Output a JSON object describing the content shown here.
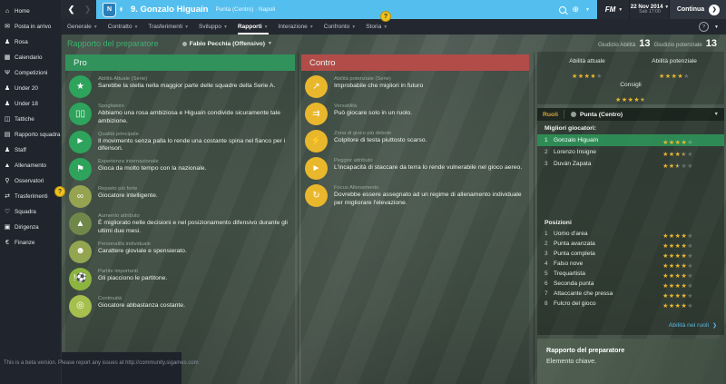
{
  "colors": {
    "blue_bar": "#54bfee",
    "pro_header": "#31935b",
    "contro_header": "#b24c49",
    "star_gold": "#eab62e",
    "highlight_row": "#2f9158",
    "link_blue": "#5bb9e6"
  },
  "sidebar": {
    "items": [
      {
        "label": "Home",
        "icon": "home-icon",
        "glyph": "⌂"
      },
      {
        "label": "Posta in arrivo",
        "icon": "inbox-icon",
        "glyph": "✉"
      },
      {
        "label": "Rosa",
        "icon": "squad-icon",
        "glyph": "♟"
      },
      {
        "label": "Calendario",
        "icon": "calendar-icon",
        "glyph": "▦"
      },
      {
        "label": "Competizioni",
        "icon": "trophy-icon",
        "glyph": "Ψ"
      },
      {
        "label": "Under 20",
        "icon": "under20-icon",
        "glyph": "♟"
      },
      {
        "label": "Under 18",
        "icon": "under18-icon",
        "glyph": "♟"
      },
      {
        "label": "Tattiche",
        "icon": "tactics-board-icon",
        "glyph": "◫"
      },
      {
        "label": "Rapporto squadra",
        "icon": "team-report-icon",
        "glyph": "▤"
      },
      {
        "label": "Staff",
        "icon": "staff-icon",
        "glyph": "♟"
      },
      {
        "label": "Allenamento",
        "icon": "training-cone-icon",
        "glyph": "▲"
      },
      {
        "label": "Osservatori",
        "icon": "scout-magnifier-icon",
        "glyph": "⚲"
      },
      {
        "label": "Trasferimenti",
        "icon": "transfers-icon",
        "glyph": "⇄"
      },
      {
        "label": "Squadra",
        "icon": "club-icon",
        "glyph": "♡"
      },
      {
        "label": "Dirigenza",
        "icon": "board-icon",
        "glyph": "▣"
      },
      {
        "label": "Finanze",
        "icon": "finances-icon",
        "glyph": "€"
      }
    ],
    "beta_note": "This is a beta version. Please report any issues at http://community.sigames.com"
  },
  "titlebar": {
    "back": "❮",
    "forward": "❯",
    "badge_letter": "N",
    "title": "9. Gonzalo Higuaín",
    "subtitle": "Punta (Centro) · Napoli"
  },
  "topbar": {
    "fm_label": "FM",
    "date": "22 Nov 2014",
    "time": "Sab 17:00",
    "continue_label": "Continua",
    "continue_arrow": "❯"
  },
  "tabs": {
    "active": "Rapporti",
    "items": [
      "Generale",
      "Contratto",
      "Trasferimenti",
      "Sviluppo",
      "Rapporti",
      "Interazione",
      "Confronto",
      "Storia"
    ]
  },
  "subheader": {
    "title": "Rapporto del preparatore",
    "selector": "Fabio Pecchia (Offensivo)"
  },
  "pro": {
    "header": "Pro",
    "items": [
      {
        "caption": "Abilità Attuale (Serie)",
        "text": "Sarebbe la stella nella maggior parte delle squadre della Serie A.",
        "icon": "star-icon",
        "glyph": "★",
        "color": "#2ea35b"
      },
      {
        "caption": "Spogliatoio",
        "text": "Abbiamo una rosa ambiziosa e Higuaín condivide sicuramente tale ambizione.",
        "icon": "lockers-icon",
        "glyph": "▯▯",
        "color": "#2ea35b"
      },
      {
        "caption": "Qualità principale",
        "text": "Il movimento senza palla lo rende una costante spina nel fianco per i difensori.",
        "icon": "boot-icon",
        "glyph": "►",
        "color": "#2ea35b"
      },
      {
        "caption": "Esperienza internazionale",
        "text": "Gioca da molto tempo con la nazionale.",
        "icon": "corner-flag-icon",
        "glyph": "⚑",
        "color": "#2ea35b"
      },
      {
        "caption": "Reparto più forte",
        "text": "Giocatore intelligente.",
        "icon": "chain-links-icon",
        "glyph": "∞",
        "color": "#96a351"
      },
      {
        "caption": "Aumento attributo",
        "text": "È migliorato nelle decisioni e nel posizionamento difensivo durante gli ultimi due mesi.",
        "icon": "cone-up-arrow-icon",
        "glyph": "▲",
        "color": "#6f8749"
      },
      {
        "caption": "Personalità individuale",
        "text": "Carattere gioviale e spensierato.",
        "icon": "head-icon",
        "glyph": "☻",
        "color": "#93a550"
      },
      {
        "caption": "Partite importanti",
        "text": "Gli piacciono le partitone.",
        "icon": "ball-exclaim-icon",
        "glyph": "!⚽",
        "color": "#8db43e"
      },
      {
        "caption": "Continuità",
        "text": "Giocatore abbastanza costante.",
        "icon": "target-icon",
        "glyph": "◎",
        "color": "#a6bf4d"
      }
    ]
  },
  "contro": {
    "header": "Contro",
    "items": [
      {
        "caption": "Abilità potenziale (Serie)",
        "text": "Improbabile che migliori in futuro",
        "icon": "trend-arrow-icon",
        "glyph": "↗",
        "color": "#e9b72c"
      },
      {
        "caption": "Versatilità",
        "text": "Può giocare solo in un ruolo.",
        "icon": "double-arrows-icon",
        "glyph": "⇉",
        "color": "#e9b72c"
      },
      {
        "caption": "Zona di gioco più debole",
        "text": "Colpitore di testa piuttosto scarso.",
        "icon": "weak-spot-icon",
        "glyph": "⚡",
        "color": "#e9b72c"
      },
      {
        "caption": "Peggior attributo",
        "text": "L'incapacità di staccare da terra lo rende vulnerabile nel gioco aereo.",
        "icon": "boot-icon",
        "glyph": "►",
        "color": "#e9b72c"
      },
      {
        "caption": "Focus Allenamento",
        "text": "Dovrebbe essere assegnato ad un regime di allenamento individuale per migliorare l'elevazione.",
        "icon": "cone-rotate-icon",
        "glyph": "↻",
        "color": "#e9b72c"
      }
    ]
  },
  "ratings": {
    "ability_label": "Giudizio Abilità",
    "ability_value": "13",
    "potential_label": "Giudizio potenziale",
    "potential_value": "13",
    "current_label": "Abilità attuale",
    "current_stars": 4,
    "pot_label": "Abilità potenziale",
    "pot_stars": 4,
    "advice_label": "Consigli",
    "advice_stars": 4.5
  },
  "ruoli": {
    "header": "Ruoli",
    "role": "Punta (Centro)",
    "best_label": "Migliori giocatori:",
    "players": [
      {
        "rank": "1",
        "name": "Gonzalo Higuaín",
        "stars": 4,
        "highlight": true
      },
      {
        "rank": "2",
        "name": "Lorenzo Insigne",
        "stars": 3.5,
        "highlight": false
      },
      {
        "rank": "3",
        "name": "Duván Zapata",
        "stars": 2.5,
        "highlight": false
      }
    ]
  },
  "posizioni": {
    "header": "Posizioni",
    "rows": [
      {
        "rank": "1",
        "name": "Uomo d'area",
        "stars": 4
      },
      {
        "rank": "2",
        "name": "Punta avanzata",
        "stars": 4
      },
      {
        "rank": "3",
        "name": "Punta completa",
        "stars": 4
      },
      {
        "rank": "4",
        "name": "Falso nove",
        "stars": 4
      },
      {
        "rank": "5",
        "name": "Trequartista",
        "stars": 4
      },
      {
        "rank": "6",
        "name": "Seconda punta",
        "stars": 4
      },
      {
        "rank": "7",
        "name": "Attaccante che pressa",
        "stars": 4
      },
      {
        "rank": "8",
        "name": "Fulcro del gioco",
        "stars": 4
      }
    ],
    "link": "Abilità nei ruoli"
  },
  "report_box": {
    "title": "Rapporto del preparatore",
    "text": "Elemento chiave."
  }
}
